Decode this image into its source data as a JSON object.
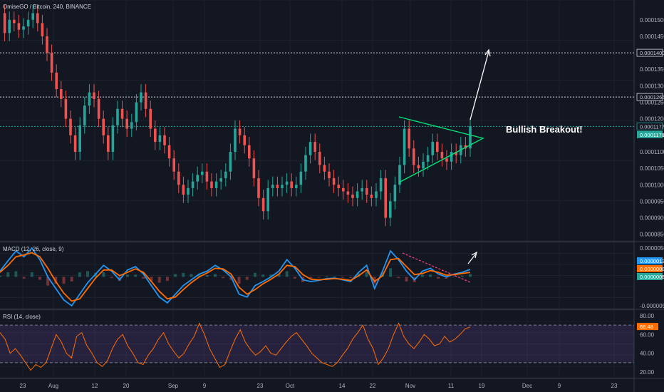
{
  "chart_data": [
    {
      "type": "line",
      "panel": "price",
      "title": "OmiseGO / Bitcoin, 240, BINANCE",
      "annotation": "Bullish Breakout!",
      "y_ticks": [
        "0.0001500",
        "0.0001450",
        "0.0001400",
        "0.0001350",
        "0.0001300",
        "0.0001266",
        "0.0001250",
        "0.0001200",
        "0.0001177",
        "0.0001176",
        "0.0001150",
        "0.0001100",
        "0.0001050",
        "0.0001000",
        "0.0000950",
        "0.0000900",
        "0.0000850"
      ],
      "ylim": [
        8.3e-05,
        0.000156
      ],
      "levels": [
        {
          "label": "0.0001400",
          "value": 0.00014
        },
        {
          "label": "0.0001266",
          "value": 0.0001266
        },
        {
          "label": "0.0001177",
          "value": 0.0001177
        }
      ],
      "last_price": {
        "label": "0.0001176",
        "value": 0.0001176
      },
      "x_ticks": [
        "23",
        "Aug",
        "12",
        "20",
        "Sep",
        "9",
        "23",
        "Oct",
        "14",
        "22",
        "Nov",
        "11",
        "19",
        "Dec",
        "9",
        "23"
      ],
      "series": [
        {
          "values": [
            0.000152,
            0.000146,
            0.00015,
            0.000149,
            0.000147,
            0.000148,
            0.00015,
            0.000152,
            0.000149,
            0.000145,
            0.00014,
            0.000134,
            0.000129,
            0.000126,
            0.00012,
            0.000115,
            0.00011,
            0.000118,
            0.000124,
            0.000128,
            0.000126,
            0.00012,
            0.000115,
            0.00011,
            0.000118,
            0.000123,
            0.00012,
            0.000117,
            0.000119,
            0.000125,
            0.000128,
            0.000123,
            0.000117,
            0.000113,
            0.000115,
            0.000112,
            0.000108,
            0.000104,
            0.0001,
            9.7e-05,
            9.9e-05,
            0.000101,
            0.000103,
            0.000104,
            0.000101,
            9.9e-05,
            0.000101,
            0.000102,
            0.000104,
            0.00011,
            0.000117,
            0.000115,
            0.000112,
            0.000108,
            0.000102,
            9.6e-05,
            9.2e-05,
            9.9e-05,
            0.0001,
            9.9e-05,
            0.0001,
            0.000101,
            9.9e-05,
            0.0001,
            0.000104,
            0.000109,
            0.000113,
            0.00011,
            0.000106,
            0.000104,
            0.000102,
            0.0001,
            9.9e-05,
            9.8e-05,
            9.7e-05,
            9.6e-05,
            9.8e-05,
            9.9e-05,
            9.7e-05,
            9.6e-05,
            9.8e-05,
            0.000102,
            9e-05,
            9.5e-05,
            0.0001,
            0.000106,
            0.000117,
            0.000111,
            0.000106,
            0.000105,
            0.000107,
            0.000109,
            0.000113,
            0.00011,
            0.000108,
            0.000107,
            0.00011,
            0.000109,
            0.000112,
            0.000111,
            0.0001177
          ]
        }
      ]
    },
    {
      "type": "line",
      "panel": "macd",
      "title": "MACD (12, 26, close, 9)",
      "y_ticks": [
        "0.0000050",
        "0.0000000",
        "-0.0000050"
      ],
      "ylim": [
        -5.5e-06,
        6e-06
      ],
      "value_tags": [
        {
          "label": "0.0000013",
          "value": 1.3e-06,
          "color": "#2196f3"
        },
        {
          "label": "0.0000008",
          "value": 8e-07,
          "color": "#ff6d00"
        },
        {
          "label": "0.0000005",
          "value": 5e-07,
          "color": "#26a69a"
        }
      ],
      "series": [
        {
          "name": "MACD",
          "color": "#2196f3",
          "values": [
            1e-06,
            2.8e-06,
            4.5e-06,
            3.5e-06,
            5e-06,
            3e-06,
            0.0,
            -2e-06,
            -4e-06,
            -5e-06,
            -3e-06,
            -1e-06,
            5e-07,
            2e-06,
            1e-06,
            -5e-07,
            1.2e-06,
            1.8e-06,
            5e-07,
            -1.5e-06,
            -3.5e-06,
            -4.5e-06,
            -3e-06,
            -1.5e-06,
            -5e-07,
            5e-07,
            1e-06,
            2e-06,
            1.2e-06,
            0.0,
            -3e-06,
            -3.5e-06,
            -1.5e-06,
            -8e-07,
            0.0,
            1e-06,
            3e-06,
            1.5e-06,
            -5e-07,
            -8e-07,
            -6e-07,
            -3e-07,
            -2e-07,
            -5e-07,
            -8e-07,
            8e-07,
            2e-06,
            -2e-06,
            1e-06,
            4.5e-06,
            3e-06,
            1e-06,
            -5e-07,
            1e-06,
            1.5e-06,
            5e-07,
            0.0,
            5e-07,
            8e-07,
            1.3e-06
          ]
        },
        {
          "name": "Signal",
          "color": "#ff6d00",
          "values": [
            8e-07,
            2e-06,
            3.5e-06,
            3.8e-06,
            4.2e-06,
            3.5e-06,
            1.5e-06,
            -8e-07,
            -2.8e-06,
            -4.2e-06,
            -3.8e-06,
            -2e-06,
            -2e-07,
            1.2e-06,
            1.2e-06,
            2e-07,
            8e-07,
            1.4e-06,
            8e-07,
            -8e-07,
            -2.5e-06,
            -3.8e-06,
            -3.5e-06,
            -2.2e-06,
            -1e-06,
            0.0,
            7e-07,
            1.5e-06,
            1.4e-06,
            5e-07,
            -1.8e-06,
            -3e-06,
            -2.2e-06,
            -1.2e-06,
            -4e-07,
            5e-07,
            2e-06,
            1.8e-06,
            4e-07,
            -4e-07,
            -5e-07,
            -4e-07,
            -3e-07,
            -4e-07,
            -6e-07,
            2e-07,
            1.2e-06,
            -8e-07,
            2e-07,
            3e-06,
            3.2e-06,
            1.8e-06,
            4e-07,
            6e-07,
            1.1e-06,
            8e-07,
            3e-07,
            4e-07,
            6e-07,
            8e-07
          ]
        }
      ]
    },
    {
      "type": "line",
      "panel": "rsi",
      "title": "RSI (14, close)",
      "y_ticks": [
        "80.00",
        "68.48",
        "60.00",
        "40.00",
        "20.00"
      ],
      "ylim": [
        14,
        86
      ],
      "band": [
        30,
        70
      ],
      "last_value": {
        "label": "68.48",
        "value": 68.48
      },
      "series": [
        {
          "name": "RSI",
          "color": "#ff6d00",
          "values": [
            62,
            55,
            40,
            45,
            38,
            30,
            22,
            28,
            25,
            30,
            45,
            60,
            52,
            40,
            35,
            58,
            62,
            48,
            40,
            30,
            26,
            32,
            45,
            55,
            60,
            48,
            40,
            30,
            28,
            38,
            45,
            55,
            62,
            50,
            42,
            35,
            40,
            50,
            58,
            72,
            60,
            45,
            35,
            25,
            28,
            42,
            55,
            65,
            52,
            44,
            38,
            42,
            48,
            40,
            38,
            45,
            52,
            58,
            62,
            55,
            48,
            40,
            35,
            30,
            28,
            26,
            30,
            38,
            45,
            55,
            62,
            70,
            55,
            45,
            28,
            35,
            45,
            60,
            72,
            58,
            50,
            45,
            52,
            60,
            55,
            48,
            50,
            58,
            52,
            55,
            60,
            66,
            68
          ]
        }
      ]
    }
  ]
}
